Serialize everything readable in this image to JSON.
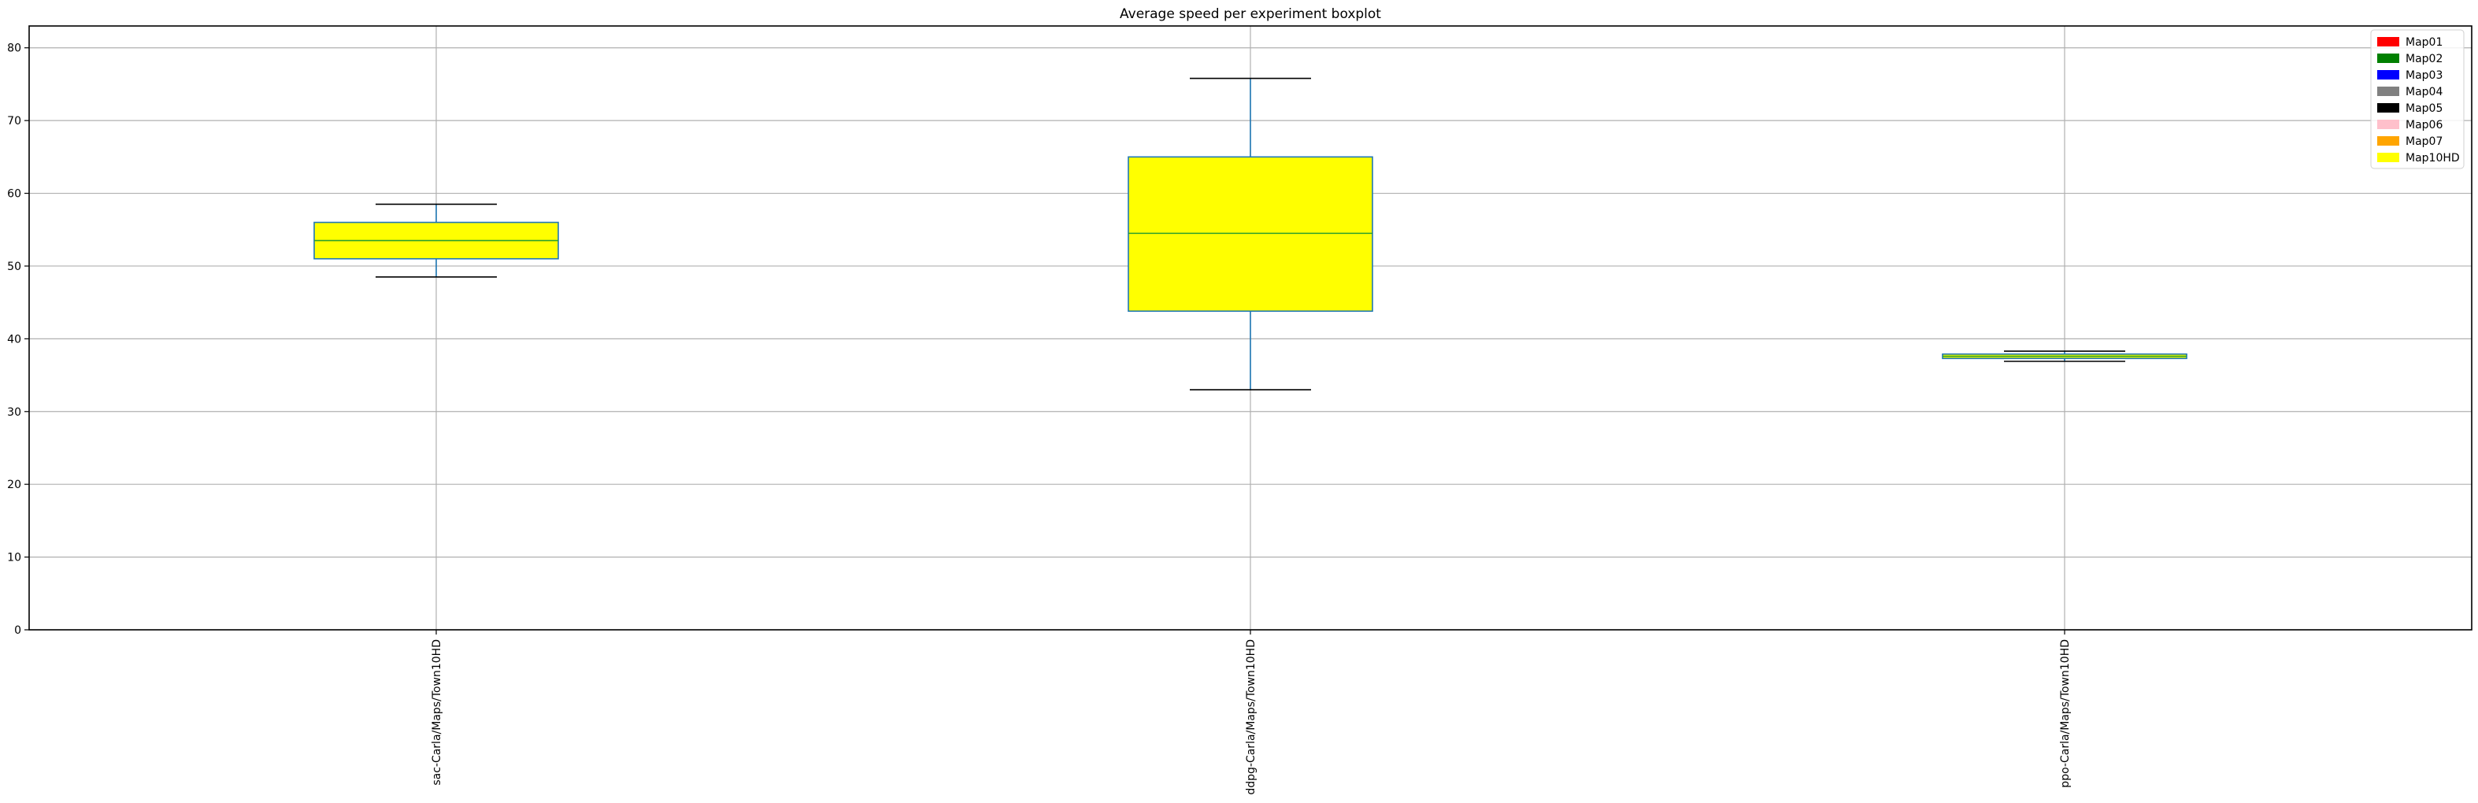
{
  "chart_data": {
    "type": "box",
    "title": "Average speed per experiment boxplot",
    "xlabel": "",
    "ylabel": "",
    "ylim": [
      0,
      83
    ],
    "yticks": [
      0,
      10,
      20,
      30,
      40,
      50,
      60,
      70,
      80
    ],
    "grid": true,
    "categories": [
      "sac-Carla/Maps/Town10HD",
      "ddpg-Carla/Maps/Town10HD",
      "ppo-Carla/Maps/Town10HD"
    ],
    "boxes": [
      {
        "category": "sac-Carla/Maps/Town10HD",
        "whisker_low": 48.5,
        "q1": 51.0,
        "median": 53.5,
        "q3": 56.0,
        "whisker_high": 58.5,
        "fill": "#ffff00"
      },
      {
        "category": "ddpg-Carla/Maps/Town10HD",
        "whisker_low": 33.0,
        "q1": 43.8,
        "median": 54.5,
        "q3": 65.0,
        "whisker_high": 75.8,
        "fill": "#ffff00"
      },
      {
        "category": "ppo-Carla/Maps/Town10HD",
        "whisker_low": 36.9,
        "q1": 37.3,
        "median": 37.6,
        "q3": 37.9,
        "whisker_high": 38.3,
        "fill": "#ffff00"
      }
    ],
    "legend": {
      "placement": "top-right",
      "entries": [
        {
          "label": "Map01",
          "color": "#ff0000"
        },
        {
          "label": "Map02",
          "color": "#008000"
        },
        {
          "label": "Map03",
          "color": "#0000ff"
        },
        {
          "label": "Map04",
          "color": "#808080"
        },
        {
          "label": "Map05",
          "color": "#000000"
        },
        {
          "label": "Map06",
          "color": "#ffc0cb"
        },
        {
          "label": "Map07",
          "color": "#ffa500"
        },
        {
          "label": "Map10HD",
          "color": "#ffff00"
        }
      ]
    },
    "colors": {
      "box_edge": "#1f77b4",
      "median": "#2ca02c",
      "whisker": "#1f77b4",
      "cap": "#000000",
      "grid": "#b0b0b0"
    }
  }
}
